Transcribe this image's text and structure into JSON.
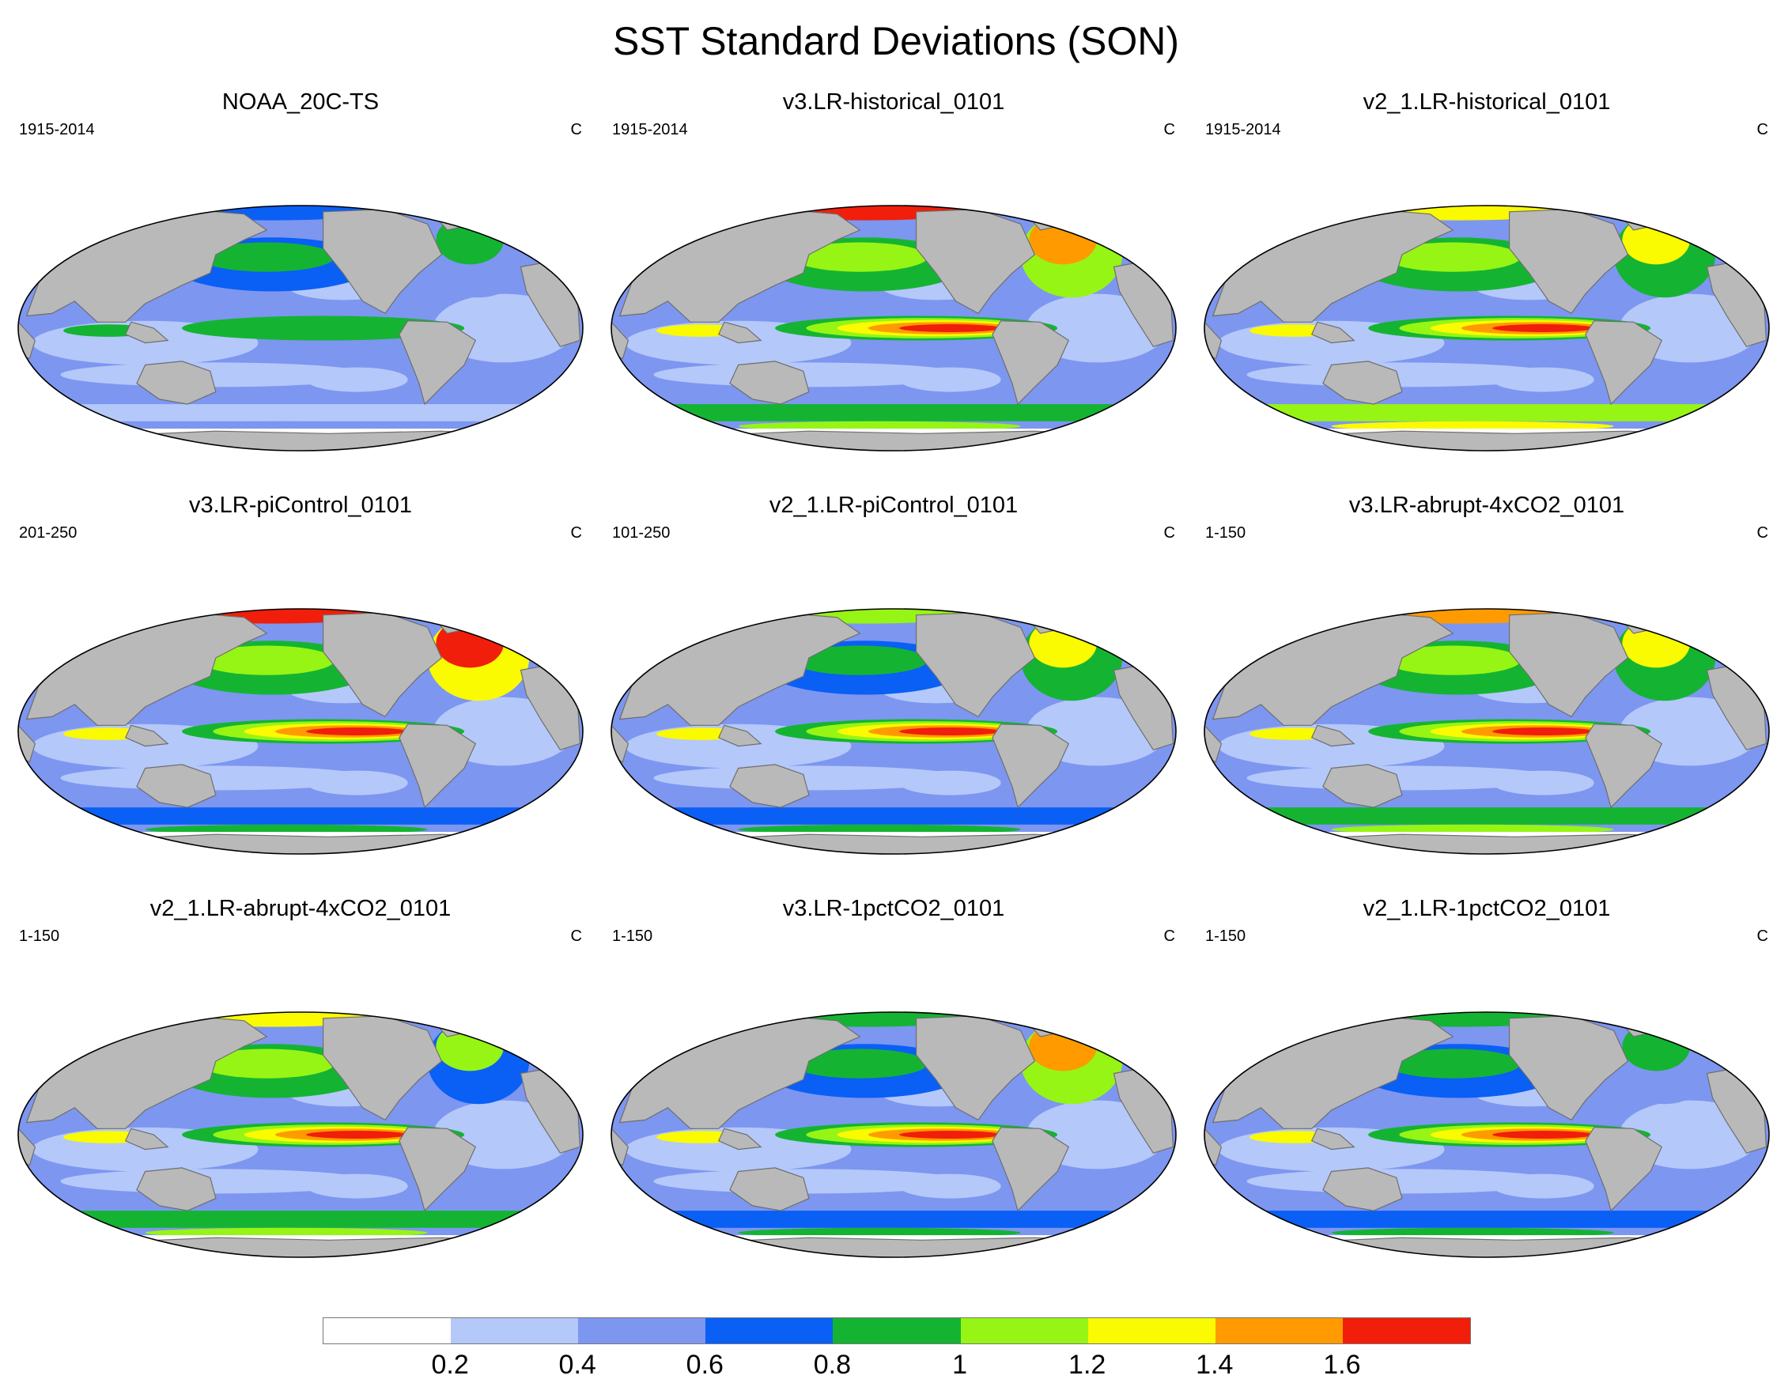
{
  "title": "SST Standard Deviations (SON)",
  "units": "C",
  "colors": {
    "land": "#b9b9b9",
    "land_outline": "#6e6e6e",
    "levels": [
      "#ffffff",
      "#b4c8fa",
      "#7d96f0",
      "#0a5ff5",
      "#14b432",
      "#96f514",
      "#fafa00",
      "#ff9b00",
      "#f01e0a"
    ]
  },
  "colorbar": {
    "labels": [
      "0.2",
      "0.4",
      "0.6",
      "0.8",
      "1",
      "1.2",
      "1.4",
      "1.6"
    ],
    "level_boundaries": [
      0.2,
      0.4,
      0.6,
      0.8,
      1.0,
      1.2,
      1.4,
      1.6
    ]
  },
  "panels": [
    {
      "title": "NOAA_20C-TS",
      "period": "1915-2014",
      "units": "C",
      "enso_level": 4,
      "north_pacific_level": 4,
      "north_atlantic_level": 4,
      "arctic_level": 3,
      "southern_ocean_level": 2
    },
    {
      "title": "v3.LR-historical_0101",
      "period": "1915-2014",
      "units": "C",
      "enso_level": 8,
      "north_pacific_level": 5,
      "north_atlantic_level": 7,
      "arctic_level": 8,
      "southern_ocean_level": 5
    },
    {
      "title": "v2_1.LR-historical_0101",
      "period": "1915-2014",
      "units": "C",
      "enso_level": 8,
      "north_pacific_level": 5,
      "north_atlantic_level": 6,
      "arctic_level": 6,
      "southern_ocean_level": 6
    },
    {
      "title": "v3.LR-piControl_0101",
      "period": "201-250",
      "units": "C",
      "enso_level": 8,
      "north_pacific_level": 5,
      "north_atlantic_level": 8,
      "arctic_level": 8,
      "southern_ocean_level": 4
    },
    {
      "title": "v2_1.LR-piControl_0101",
      "period": "101-250",
      "units": "C",
      "enso_level": 8,
      "north_pacific_level": 4,
      "north_atlantic_level": 6,
      "arctic_level": 5,
      "southern_ocean_level": 4
    },
    {
      "title": "v3.LR-abrupt-4xCO2_0101",
      "period": "1-150",
      "units": "C",
      "enso_level": 8,
      "north_pacific_level": 5,
      "north_atlantic_level": 6,
      "arctic_level": 7,
      "southern_ocean_level": 5
    },
    {
      "title": "v2_1.LR-abrupt-4xCO2_0101",
      "period": "1-150",
      "units": "C",
      "enso_level": 8,
      "north_pacific_level": 5,
      "north_atlantic_level": 5,
      "arctic_level": 6,
      "southern_ocean_level": 5
    },
    {
      "title": "v3.LR-1pctCO2_0101",
      "period": "1-150",
      "units": "C",
      "enso_level": 8,
      "north_pacific_level": 4,
      "north_atlantic_level": 7,
      "arctic_level": 4,
      "southern_ocean_level": 4
    },
    {
      "title": "v2_1.LR-1pctCO2_0101",
      "period": "1-150",
      "units": "C",
      "enso_level": 8,
      "north_pacific_level": 4,
      "north_atlantic_level": 4,
      "arctic_level": 4,
      "southern_ocean_level": 4
    }
  ]
}
